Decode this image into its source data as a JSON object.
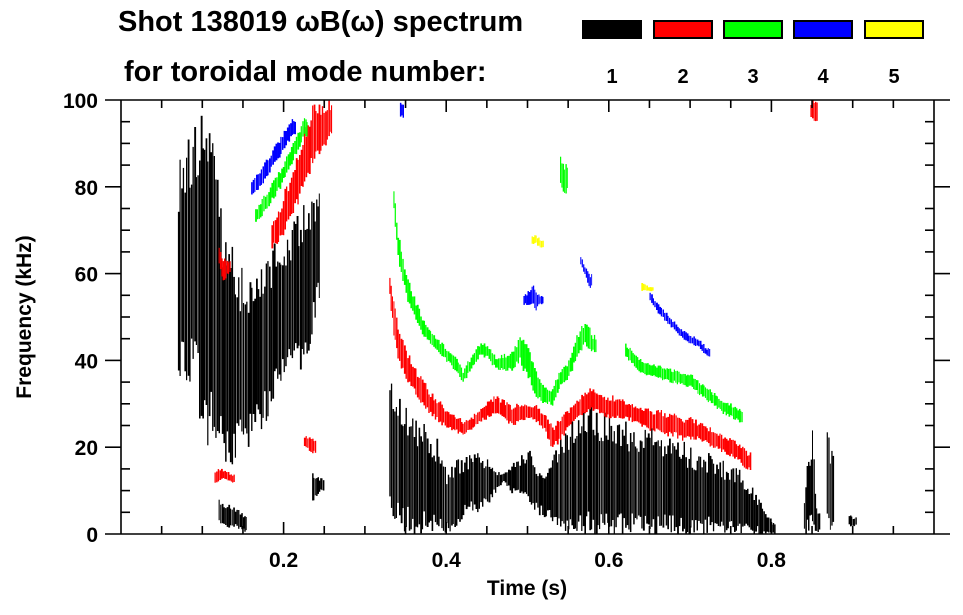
{
  "chart_data": {
    "type": "heatmap",
    "title_line1": "Shot 138019 ωB(ω) spectrum",
    "title_line2": "for toroidal mode number:",
    "xlabel": "Time (s)",
    "ylabel": "Frequency (kHz)",
    "xlim": [
      0,
      1.0
    ],
    "ylim": [
      0,
      100
    ],
    "xticks": [
      0.2,
      0.4,
      0.6,
      0.8
    ],
    "xtick_labels": [
      "0.2",
      "0.4",
      "0.6",
      "0.8"
    ],
    "yticks": [
      0,
      20,
      40,
      60,
      80,
      100
    ],
    "ytick_labels": [
      "0",
      "20",
      "40",
      "60",
      "80",
      "100"
    ],
    "legend": [
      {
        "mode": "1",
        "color": "#000000"
      },
      {
        "mode": "2",
        "color": "#ff0000"
      },
      {
        "mode": "3",
        "color": "#00ff00"
      },
      {
        "mode": "4",
        "color": "#0000ff"
      },
      {
        "mode": "5",
        "color": "#ffff00"
      }
    ],
    "features": [
      {
        "name": "n1-early-broadband",
        "mode": 1,
        "samples": [
          [
            0.07,
            42,
            85
          ],
          [
            0.08,
            40,
            92
          ],
          [
            0.09,
            38,
            100
          ],
          [
            0.1,
            30,
            100
          ],
          [
            0.11,
            25,
            95
          ],
          [
            0.12,
            22,
            80
          ],
          [
            0.13,
            20,
            70
          ],
          [
            0.14,
            22,
            64
          ],
          [
            0.15,
            25,
            62
          ],
          [
            0.16,
            24,
            60
          ],
          [
            0.17,
            28,
            62
          ],
          [
            0.18,
            30,
            64
          ],
          [
            0.19,
            35,
            68
          ],
          [
            0.2,
            38,
            70
          ],
          [
            0.21,
            40,
            72
          ],
          [
            0.22,
            42,
            75
          ],
          [
            0.23,
            45,
            78
          ],
          [
            0.24,
            55,
            80
          ]
        ]
      },
      {
        "name": "n1-early-low",
        "mode": 1,
        "samples": [
          [
            0.12,
            3,
            8
          ],
          [
            0.13,
            2,
            7
          ],
          [
            0.14,
            2,
            6
          ],
          [
            0.15,
            1,
            5
          ]
        ]
      },
      {
        "name": "n1-early-patch",
        "mode": 1,
        "samples": [
          [
            0.235,
            8,
            15
          ],
          [
            0.24,
            9,
            14
          ],
          [
            0.245,
            10,
            13
          ]
        ]
      },
      {
        "name": "n1-main-low",
        "mode": 1,
        "samples": [
          [
            0.33,
            5,
            36
          ],
          [
            0.34,
            4,
            32
          ],
          [
            0.35,
            3,
            30
          ],
          [
            0.36,
            3,
            28
          ],
          [
            0.37,
            3,
            26
          ],
          [
            0.38,
            2,
            24
          ],
          [
            0.39,
            2,
            22
          ],
          [
            0.4,
            1,
            14
          ],
          [
            0.41,
            3,
            17
          ],
          [
            0.42,
            5,
            18
          ],
          [
            0.43,
            6,
            19
          ],
          [
            0.44,
            6,
            19
          ],
          [
            0.45,
            8,
            18
          ],
          [
            0.46,
            10,
            15
          ],
          [
            0.47,
            12,
            14
          ],
          [
            0.48,
            10,
            16
          ],
          [
            0.49,
            9,
            18
          ],
          [
            0.5,
            8,
            20
          ],
          [
            0.51,
            6,
            17
          ],
          [
            0.52,
            5,
            14
          ],
          [
            0.53,
            4,
            18
          ],
          [
            0.54,
            3,
            22
          ],
          [
            0.55,
            3,
            26
          ],
          [
            0.56,
            3,
            28
          ],
          [
            0.57,
            3,
            30
          ],
          [
            0.58,
            2,
            30
          ],
          [
            0.59,
            2,
            28
          ],
          [
            0.6,
            2,
            28
          ],
          [
            0.61,
            2,
            27
          ],
          [
            0.62,
            2,
            26
          ],
          [
            0.63,
            2,
            25
          ],
          [
            0.64,
            2,
            24
          ],
          [
            0.65,
            2,
            25
          ],
          [
            0.66,
            2,
            24
          ],
          [
            0.67,
            2,
            22
          ],
          [
            0.68,
            2,
            22
          ],
          [
            0.69,
            2,
            22
          ],
          [
            0.7,
            2,
            20
          ],
          [
            0.71,
            2,
            20
          ],
          [
            0.72,
            2,
            19
          ],
          [
            0.73,
            2,
            18
          ],
          [
            0.74,
            2,
            17
          ],
          [
            0.75,
            2,
            16
          ],
          [
            0.76,
            2,
            15
          ],
          [
            0.77,
            1,
            13
          ],
          [
            0.78,
            1,
            10
          ],
          [
            0.79,
            0,
            6
          ],
          [
            0.8,
            0,
            3
          ]
        ]
      },
      {
        "name": "n1-late-burst",
        "mode": 1,
        "samples": [
          [
            0.84,
            1,
            8
          ],
          [
            0.845,
            2,
            20
          ],
          [
            0.85,
            3,
            24
          ],
          [
            0.855,
            1,
            6
          ]
        ]
      },
      {
        "name": "n1-late-spike",
        "mode": 1,
        "samples": [
          [
            0.868,
            2,
            25
          ],
          [
            0.872,
            3,
            20
          ]
        ]
      },
      {
        "name": "n1-late-dot",
        "mode": 1,
        "samples": [
          [
            0.895,
            2,
            5
          ],
          [
            0.9,
            2,
            4
          ]
        ]
      },
      {
        "name": "n2-early-chirp",
        "mode": 2,
        "samples": [
          [
            0.185,
            66,
            72
          ],
          [
            0.195,
            68,
            76
          ],
          [
            0.205,
            72,
            82
          ],
          [
            0.215,
            76,
            88
          ],
          [
            0.225,
            82,
            94
          ],
          [
            0.235,
            86,
            100
          ],
          [
            0.245,
            88,
            100
          ],
          [
            0.255,
            92,
            100
          ]
        ]
      },
      {
        "name": "n2-early-low",
        "mode": 2,
        "samples": [
          [
            0.115,
            12,
            15
          ],
          [
            0.125,
            13,
            15
          ],
          [
            0.135,
            12,
            14
          ]
        ]
      },
      {
        "name": "n2-early-mid",
        "mode": 2,
        "samples": [
          [
            0.12,
            62,
            66
          ],
          [
            0.125,
            58,
            64
          ],
          [
            0.13,
            60,
            63
          ]
        ]
      },
      {
        "name": "n2-early-patch",
        "mode": 2,
        "samples": [
          [
            0.225,
            20,
            23
          ],
          [
            0.235,
            19,
            22
          ]
        ]
      },
      {
        "name": "n2-main",
        "mode": 2,
        "samples": [
          [
            0.33,
            55,
            60
          ],
          [
            0.335,
            46,
            54
          ],
          [
            0.34,
            40,
            48
          ],
          [
            0.35,
            36,
            43
          ],
          [
            0.36,
            33,
            39
          ],
          [
            0.37,
            30,
            36
          ],
          [
            0.38,
            28,
            33
          ],
          [
            0.39,
            26,
            31
          ],
          [
            0.4,
            25,
            29
          ],
          [
            0.41,
            24,
            28
          ],
          [
            0.42,
            23,
            26
          ],
          [
            0.43,
            24,
            27
          ],
          [
            0.44,
            26,
            29
          ],
          [
            0.45,
            27,
            31
          ],
          [
            0.46,
            28,
            32
          ],
          [
            0.47,
            27,
            31
          ],
          [
            0.48,
            25,
            30
          ],
          [
            0.49,
            26,
            30
          ],
          [
            0.5,
            27,
            30
          ],
          [
            0.51,
            26,
            30
          ],
          [
            0.52,
            24,
            28
          ],
          [
            0.53,
            20,
            25
          ],
          [
            0.54,
            22,
            27
          ],
          [
            0.55,
            25,
            29
          ],
          [
            0.56,
            27,
            31
          ],
          [
            0.57,
            28,
            33
          ],
          [
            0.58,
            29,
            34
          ],
          [
            0.59,
            28,
            33
          ],
          [
            0.6,
            27,
            32
          ],
          [
            0.61,
            27,
            32
          ],
          [
            0.62,
            27,
            31
          ],
          [
            0.63,
            26,
            30
          ],
          [
            0.64,
            25,
            30
          ],
          [
            0.65,
            24,
            29
          ],
          [
            0.66,
            24,
            29
          ],
          [
            0.67,
            23,
            28
          ],
          [
            0.68,
            23,
            28
          ],
          [
            0.69,
            22,
            27
          ],
          [
            0.7,
            22,
            27
          ],
          [
            0.71,
            22,
            26
          ],
          [
            0.72,
            21,
            25
          ],
          [
            0.73,
            20,
            24
          ],
          [
            0.74,
            19,
            23
          ],
          [
            0.75,
            18,
            22
          ],
          [
            0.76,
            17,
            21
          ],
          [
            0.77,
            15,
            19
          ]
        ]
      },
      {
        "name": "n2-late-top",
        "mode": 2,
        "samples": [
          [
            0.848,
            96,
            100
          ],
          [
            0.852,
            95,
            100
          ]
        ]
      },
      {
        "name": "n3-early-chirp",
        "mode": 3,
        "samples": [
          [
            0.165,
            72,
            75
          ],
          [
            0.175,
            74,
            78
          ],
          [
            0.185,
            77,
            81
          ],
          [
            0.195,
            80,
            84
          ],
          [
            0.205,
            84,
            88
          ],
          [
            0.215,
            88,
            92
          ],
          [
            0.225,
            92,
            96
          ]
        ]
      },
      {
        "name": "n3-main",
        "mode": 3,
        "samples": [
          [
            0.335,
            75,
            80
          ],
          [
            0.34,
            64,
            70
          ],
          [
            0.35,
            55,
            60
          ],
          [
            0.36,
            50,
            55
          ],
          [
            0.37,
            46,
            50
          ],
          [
            0.38,
            44,
            47
          ],
          [
            0.39,
            42,
            45
          ],
          [
            0.4,
            40,
            43
          ],
          [
            0.41,
            38,
            41
          ],
          [
            0.42,
            35,
            38
          ],
          [
            0.43,
            38,
            41
          ],
          [
            0.44,
            41,
            44
          ],
          [
            0.45,
            41,
            44
          ],
          [
            0.46,
            38,
            41
          ],
          [
            0.48,
            38,
            42
          ],
          [
            0.49,
            40,
            46
          ],
          [
            0.5,
            36,
            44
          ],
          [
            0.51,
            32,
            38
          ],
          [
            0.52,
            30,
            34
          ],
          [
            0.53,
            30,
            34
          ],
          [
            0.54,
            34,
            38
          ],
          [
            0.55,
            36,
            40
          ],
          [
            0.56,
            41,
            46
          ],
          [
            0.57,
            44,
            50
          ],
          [
            0.58,
            42,
            46
          ]
        ]
      },
      {
        "name": "n3-spot",
        "mode": 3,
        "samples": [
          [
            0.54,
            80,
            88
          ],
          [
            0.545,
            79,
            86
          ]
        ]
      },
      {
        "name": "n3-late",
        "mode": 3,
        "samples": [
          [
            0.62,
            41,
            44
          ],
          [
            0.64,
            37,
            40
          ],
          [
            0.66,
            36,
            39
          ],
          [
            0.68,
            35,
            38
          ],
          [
            0.7,
            34,
            37
          ],
          [
            0.72,
            31,
            34
          ],
          [
            0.74,
            28,
            31
          ],
          [
            0.76,
            26,
            29
          ]
        ]
      },
      {
        "name": "n4-early-chirp",
        "mode": 4,
        "samples": [
          [
            0.16,
            78,
            82
          ],
          [
            0.17,
            80,
            84
          ],
          [
            0.18,
            83,
            87
          ],
          [
            0.19,
            86,
            90
          ],
          [
            0.2,
            89,
            93
          ],
          [
            0.21,
            92,
            96
          ]
        ]
      },
      {
        "name": "n4-top",
        "mode": 4,
        "samples": [
          [
            0.343,
            96,
            100
          ]
        ]
      },
      {
        "name": "n4-blob",
        "mode": 4,
        "samples": [
          [
            0.495,
            53,
            55
          ],
          [
            0.5,
            53,
            56
          ],
          [
            0.505,
            53,
            58
          ],
          [
            0.51,
            52,
            56
          ],
          [
            0.515,
            53,
            55
          ]
        ]
      },
      {
        "name": "n4-chirp-mid",
        "mode": 4,
        "samples": [
          [
            0.565,
            62,
            64
          ],
          [
            0.57,
            60,
            62
          ],
          [
            0.575,
            57,
            60
          ]
        ]
      },
      {
        "name": "n4-late",
        "mode": 4,
        "samples": [
          [
            0.65,
            54,
            56
          ],
          [
            0.66,
            51,
            53
          ],
          [
            0.67,
            49,
            51
          ],
          [
            0.68,
            47,
            49
          ],
          [
            0.69,
            45,
            47
          ],
          [
            0.7,
            44,
            46
          ],
          [
            0.71,
            43,
            45
          ],
          [
            0.72,
            41,
            43
          ]
        ]
      },
      {
        "name": "n5-spot-a",
        "mode": 5,
        "samples": [
          [
            0.505,
            67,
            69
          ],
          [
            0.51,
            67,
            69
          ],
          [
            0.515,
            66,
            68
          ]
        ]
      },
      {
        "name": "n5-spot-b",
        "mode": 5,
        "samples": [
          [
            0.64,
            56,
            58
          ],
          [
            0.65,
            56,
            57
          ]
        ]
      }
    ]
  }
}
